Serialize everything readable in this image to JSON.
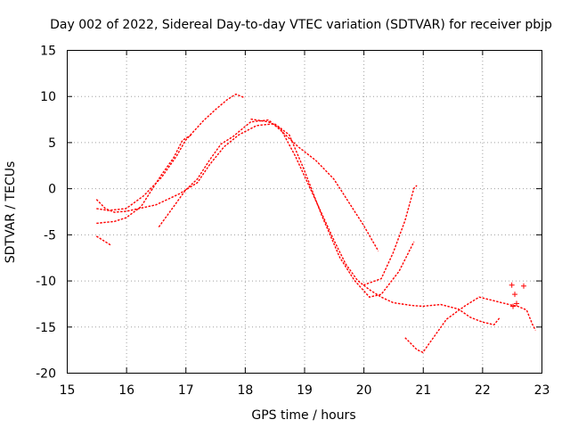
{
  "chart_data": {
    "type": "scatter",
    "title": "Day 002 of 2022, Sidereal Day-to-day VTEC variation (SDTVAR) for receiver pbjp",
    "xlabel": "GPS time / hours",
    "ylabel": "SDTVAR / TECUs",
    "xlim": [
      15,
      23
    ],
    "ylim": [
      -20,
      15
    ],
    "xticks": [
      "15",
      "16",
      "17",
      "18",
      "19",
      "20",
      "21",
      "22",
      "23"
    ],
    "yticks": [
      "15",
      "10",
      "5",
      "0",
      "-5",
      "-10",
      "-15",
      "-20"
    ],
    "grid": true,
    "marker": "+",
    "color": "#ff0000",
    "series": [
      {
        "name": "arc-1",
        "points": [
          [
            15.5,
            -2.2
          ],
          [
            15.7,
            -2.4
          ],
          [
            16.0,
            -2.2
          ],
          [
            16.3,
            -0.8
          ],
          [
            16.6,
            1.2
          ],
          [
            16.85,
            3.5
          ],
          [
            17.0,
            5.2
          ],
          [
            17.3,
            7.3
          ],
          [
            17.5,
            8.5
          ],
          [
            17.7,
            9.6
          ],
          [
            17.85,
            10.2
          ],
          [
            18.0,
            9.8
          ]
        ]
      },
      {
        "name": "arc-2",
        "points": [
          [
            15.5,
            -3.8
          ],
          [
            15.8,
            -3.6
          ],
          [
            16.0,
            -3.2
          ],
          [
            16.25,
            -2.0
          ],
          [
            16.45,
            0.0
          ],
          [
            16.6,
            1.5
          ],
          [
            16.8,
            3.3
          ],
          [
            16.95,
            5.2
          ],
          [
            17.1,
            5.8
          ]
        ]
      },
      {
        "name": "arc-3",
        "points": [
          [
            15.5,
            -1.2
          ],
          [
            15.65,
            -2.2
          ],
          [
            15.8,
            -2.6
          ],
          [
            16.0,
            -2.5
          ],
          [
            16.5,
            -1.8
          ],
          [
            16.9,
            -0.6
          ],
          [
            17.2,
            0.6
          ],
          [
            17.4,
            2.5
          ],
          [
            17.65,
            4.5
          ],
          [
            17.9,
            5.8
          ],
          [
            18.2,
            6.8
          ],
          [
            18.5,
            7.0
          ],
          [
            18.75,
            5.8
          ],
          [
            19.0,
            2.0
          ],
          [
            19.3,
            -3.0
          ],
          [
            19.6,
            -7.5
          ],
          [
            19.85,
            -10.0
          ],
          [
            20.1,
            -11.8
          ],
          [
            20.3,
            -11.5
          ],
          [
            20.6,
            -9.0
          ],
          [
            20.85,
            -5.8
          ]
        ]
      },
      {
        "name": "arc-4",
        "points": [
          [
            16.55,
            -4.2
          ],
          [
            16.8,
            -2.0
          ],
          [
            17.0,
            -0.2
          ],
          [
            17.2,
            1.0
          ],
          [
            17.4,
            3.0
          ],
          [
            17.6,
            4.8
          ],
          [
            17.8,
            5.6
          ],
          [
            18.1,
            7.2
          ],
          [
            18.4,
            7.4
          ],
          [
            18.6,
            6.3
          ],
          [
            18.9,
            4.5
          ],
          [
            19.2,
            3.0
          ],
          [
            19.5,
            1.0
          ],
          [
            19.8,
            -2.0
          ],
          [
            20.0,
            -4.0
          ],
          [
            20.25,
            -6.8
          ]
        ]
      },
      {
        "name": "arc-5",
        "points": [
          [
            18.1,
            7.5
          ],
          [
            18.4,
            7.2
          ],
          [
            18.6,
            6.5
          ],
          [
            18.85,
            3.5
          ],
          [
            19.1,
            0.0
          ],
          [
            19.3,
            -2.8
          ],
          [
            19.5,
            -5.6
          ],
          [
            19.7,
            -8.2
          ],
          [
            19.9,
            -10.0
          ],
          [
            20.1,
            -11.0
          ],
          [
            20.3,
            -11.8
          ],
          [
            20.5,
            -12.4
          ],
          [
            20.8,
            -12.7
          ],
          [
            21.0,
            -12.8
          ],
          [
            21.3,
            -12.6
          ],
          [
            21.6,
            -13.1
          ],
          [
            21.8,
            -14.0
          ],
          [
            22.0,
            -14.5
          ],
          [
            22.2,
            -14.8
          ],
          [
            22.3,
            -14.0
          ]
        ]
      },
      {
        "name": "arc-6",
        "points": [
          [
            20.0,
            -10.5
          ],
          [
            20.3,
            -9.8
          ],
          [
            20.5,
            -7.0
          ],
          [
            20.7,
            -3.5
          ],
          [
            20.85,
            0.0
          ],
          [
            20.9,
            0.3
          ]
        ]
      },
      {
        "name": "arc-7",
        "points": [
          [
            20.7,
            -16.2
          ],
          [
            20.9,
            -17.5
          ],
          [
            21.0,
            -17.8
          ],
          [
            21.2,
            -16.0
          ],
          [
            21.4,
            -14.2
          ],
          [
            21.7,
            -12.8
          ],
          [
            21.95,
            -11.8
          ],
          [
            22.2,
            -12.2
          ],
          [
            22.45,
            -12.6
          ],
          [
            22.6,
            -12.8
          ],
          [
            22.75,
            -13.2
          ],
          [
            22.85,
            -14.8
          ],
          [
            22.9,
            -15.4
          ]
        ]
      },
      {
        "name": "arc-8",
        "points": [
          [
            15.5,
            -5.2
          ],
          [
            15.6,
            -5.6
          ],
          [
            15.75,
            -6.2
          ]
        ]
      }
    ],
    "scatter_points": [
      [
        22.5,
        -10.5
      ],
      [
        22.55,
        -11.5
      ],
      [
        22.52,
        -12.8
      ],
      [
        22.7,
        -10.6
      ],
      [
        22.58,
        -12.5
      ]
    ]
  }
}
